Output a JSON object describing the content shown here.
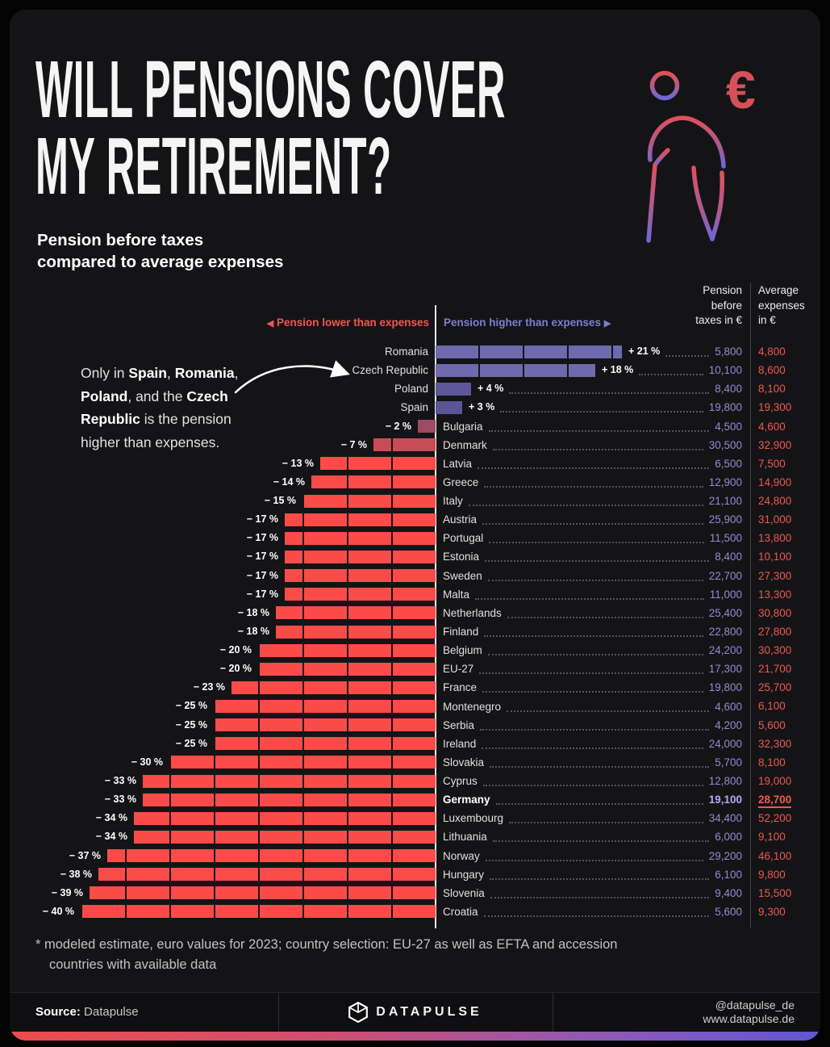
{
  "header": {
    "title_lines": [
      "WILL PENSIONS COVER",
      "MY RETIREMENT?"
    ],
    "subtitle_lines": [
      "Pension before taxes",
      "compared to average expenses"
    ]
  },
  "columns": {
    "pension_header_lines": [
      "Pension",
      "before",
      "taxes in €"
    ],
    "expenses_header_lines": [
      "Average",
      "expenses",
      "in €"
    ]
  },
  "legend": {
    "lower_arrow": "◀",
    "lower_label": "Pension lower than expenses",
    "higher_label": "Pension higher than expenses",
    "higher_arrow": "▶"
  },
  "annotation": {
    "segments": [
      {
        "text": "Only in "
      },
      {
        "text": "Spain",
        "bold": true
      },
      {
        "text": ", "
      },
      {
        "text": "Romania",
        "bold": true
      },
      {
        "text": ", "
      },
      {
        "text": "Poland",
        "bold": true
      },
      {
        "text": ", and the "
      },
      {
        "text": "Czech Republic",
        "bold": true
      },
      {
        "text": " is the pension higher than expenses."
      }
    ]
  },
  "chart_data": {
    "type": "bar",
    "variant": "horizontal-diverging",
    "title": "Will pensions cover my retirement?",
    "subtitle": "Pension before taxes compared to average expenses",
    "unit": "EUR",
    "value_columns": [
      "Pension before taxes in €",
      "Average expenses in €"
    ],
    "xlim_pct": [
      -40,
      21
    ],
    "rows": [
      {
        "country": "Romania",
        "pct": 21,
        "pension": 5800,
        "expenses": 4800
      },
      {
        "country": "Czech Republic",
        "pct": 18,
        "pension": 10100,
        "expenses": 8600
      },
      {
        "country": "Poland",
        "pct": 4,
        "pension": 8400,
        "expenses": 8100
      },
      {
        "country": "Spain",
        "pct": 3,
        "pension": 19800,
        "expenses": 19300
      },
      {
        "country": "Bulgaria",
        "pct": -2,
        "pension": 4500,
        "expenses": 4600
      },
      {
        "country": "Denmark",
        "pct": -7,
        "pension": 30500,
        "expenses": 32900
      },
      {
        "country": "Latvia",
        "pct": -13,
        "pension": 6500,
        "expenses": 7500
      },
      {
        "country": "Greece",
        "pct": -14,
        "pension": 12900,
        "expenses": 14900
      },
      {
        "country": "Italy",
        "pct": -15,
        "pension": 21100,
        "expenses": 24800
      },
      {
        "country": "Austria",
        "pct": -17,
        "pension": 25900,
        "expenses": 31000
      },
      {
        "country": "Portugal",
        "pct": -17,
        "pension": 11500,
        "expenses": 13800
      },
      {
        "country": "Estonia",
        "pct": -17,
        "pension": 8400,
        "expenses": 10100
      },
      {
        "country": "Sweden",
        "pct": -17,
        "pension": 22700,
        "expenses": 27300
      },
      {
        "country": "Malta",
        "pct": -17,
        "pension": 11000,
        "expenses": 13300
      },
      {
        "country": "Netherlands",
        "pct": -18,
        "pension": 25400,
        "expenses": 30800
      },
      {
        "country": "Finland",
        "pct": -18,
        "pension": 22800,
        "expenses": 27800
      },
      {
        "country": "Belgium",
        "pct": -20,
        "pension": 24200,
        "expenses": 30300
      },
      {
        "country": "EU-27",
        "pct": -20,
        "pension": 17300,
        "expenses": 21700
      },
      {
        "country": "France",
        "pct": -23,
        "pension": 19800,
        "expenses": 25700
      },
      {
        "country": "Montenegro",
        "pct": -25,
        "pension": 4600,
        "expenses": 6100
      },
      {
        "country": "Serbia",
        "pct": -25,
        "pension": 4200,
        "expenses": 5600
      },
      {
        "country": "Ireland",
        "pct": -25,
        "pension": 24000,
        "expenses": 32300
      },
      {
        "country": "Slovakia",
        "pct": -30,
        "pension": 5700,
        "expenses": 8100
      },
      {
        "country": "Cyprus",
        "pct": -33,
        "pension": 12800,
        "expenses": 19000
      },
      {
        "country": "Germany",
        "pct": -33,
        "pension": 19100,
        "expenses": 28700,
        "highlight": true
      },
      {
        "country": "Luxembourg",
        "pct": -34,
        "pension": 34400,
        "expenses": 52200
      },
      {
        "country": "Lithuania",
        "pct": -34,
        "pension": 6000,
        "expenses": 9100
      },
      {
        "country": "Norway",
        "pct": -37,
        "pension": 29200,
        "expenses": 46100
      },
      {
        "country": "Hungary",
        "pct": -38,
        "pension": 6100,
        "expenses": 9800
      },
      {
        "country": "Slovenia",
        "pct": -39,
        "pension": 9400,
        "expenses": 15500
      },
      {
        "country": "Croatia",
        "pct": -40,
        "pension": 5600,
        "expenses": 9300
      }
    ]
  },
  "footnote_lines": [
    "* modeled estimate, euro values for 2023; country selection: EU-27 as well as EFTA and accession",
    "countries with available data"
  ],
  "footer": {
    "source_label": "Source:",
    "source_value": "Datapulse",
    "logo_text": "DATAPULSE",
    "handle": "@datapulse_de",
    "website": "www.datapulse.de"
  },
  "colors": {
    "negative_bar": "#fb4b49",
    "negative_bar_near_zero": "#8d4a66",
    "positive_bar": "#6f69ae",
    "positive_bar_near_zero": "#565090",
    "pension_value_text": "#928bd1",
    "expense_value_text": "#f0564e",
    "legend_lower": "#f2564c",
    "legend_higher": "#837bd0",
    "gradient_left": "#ee4c4c",
    "gradient_right": "#6157d4"
  }
}
